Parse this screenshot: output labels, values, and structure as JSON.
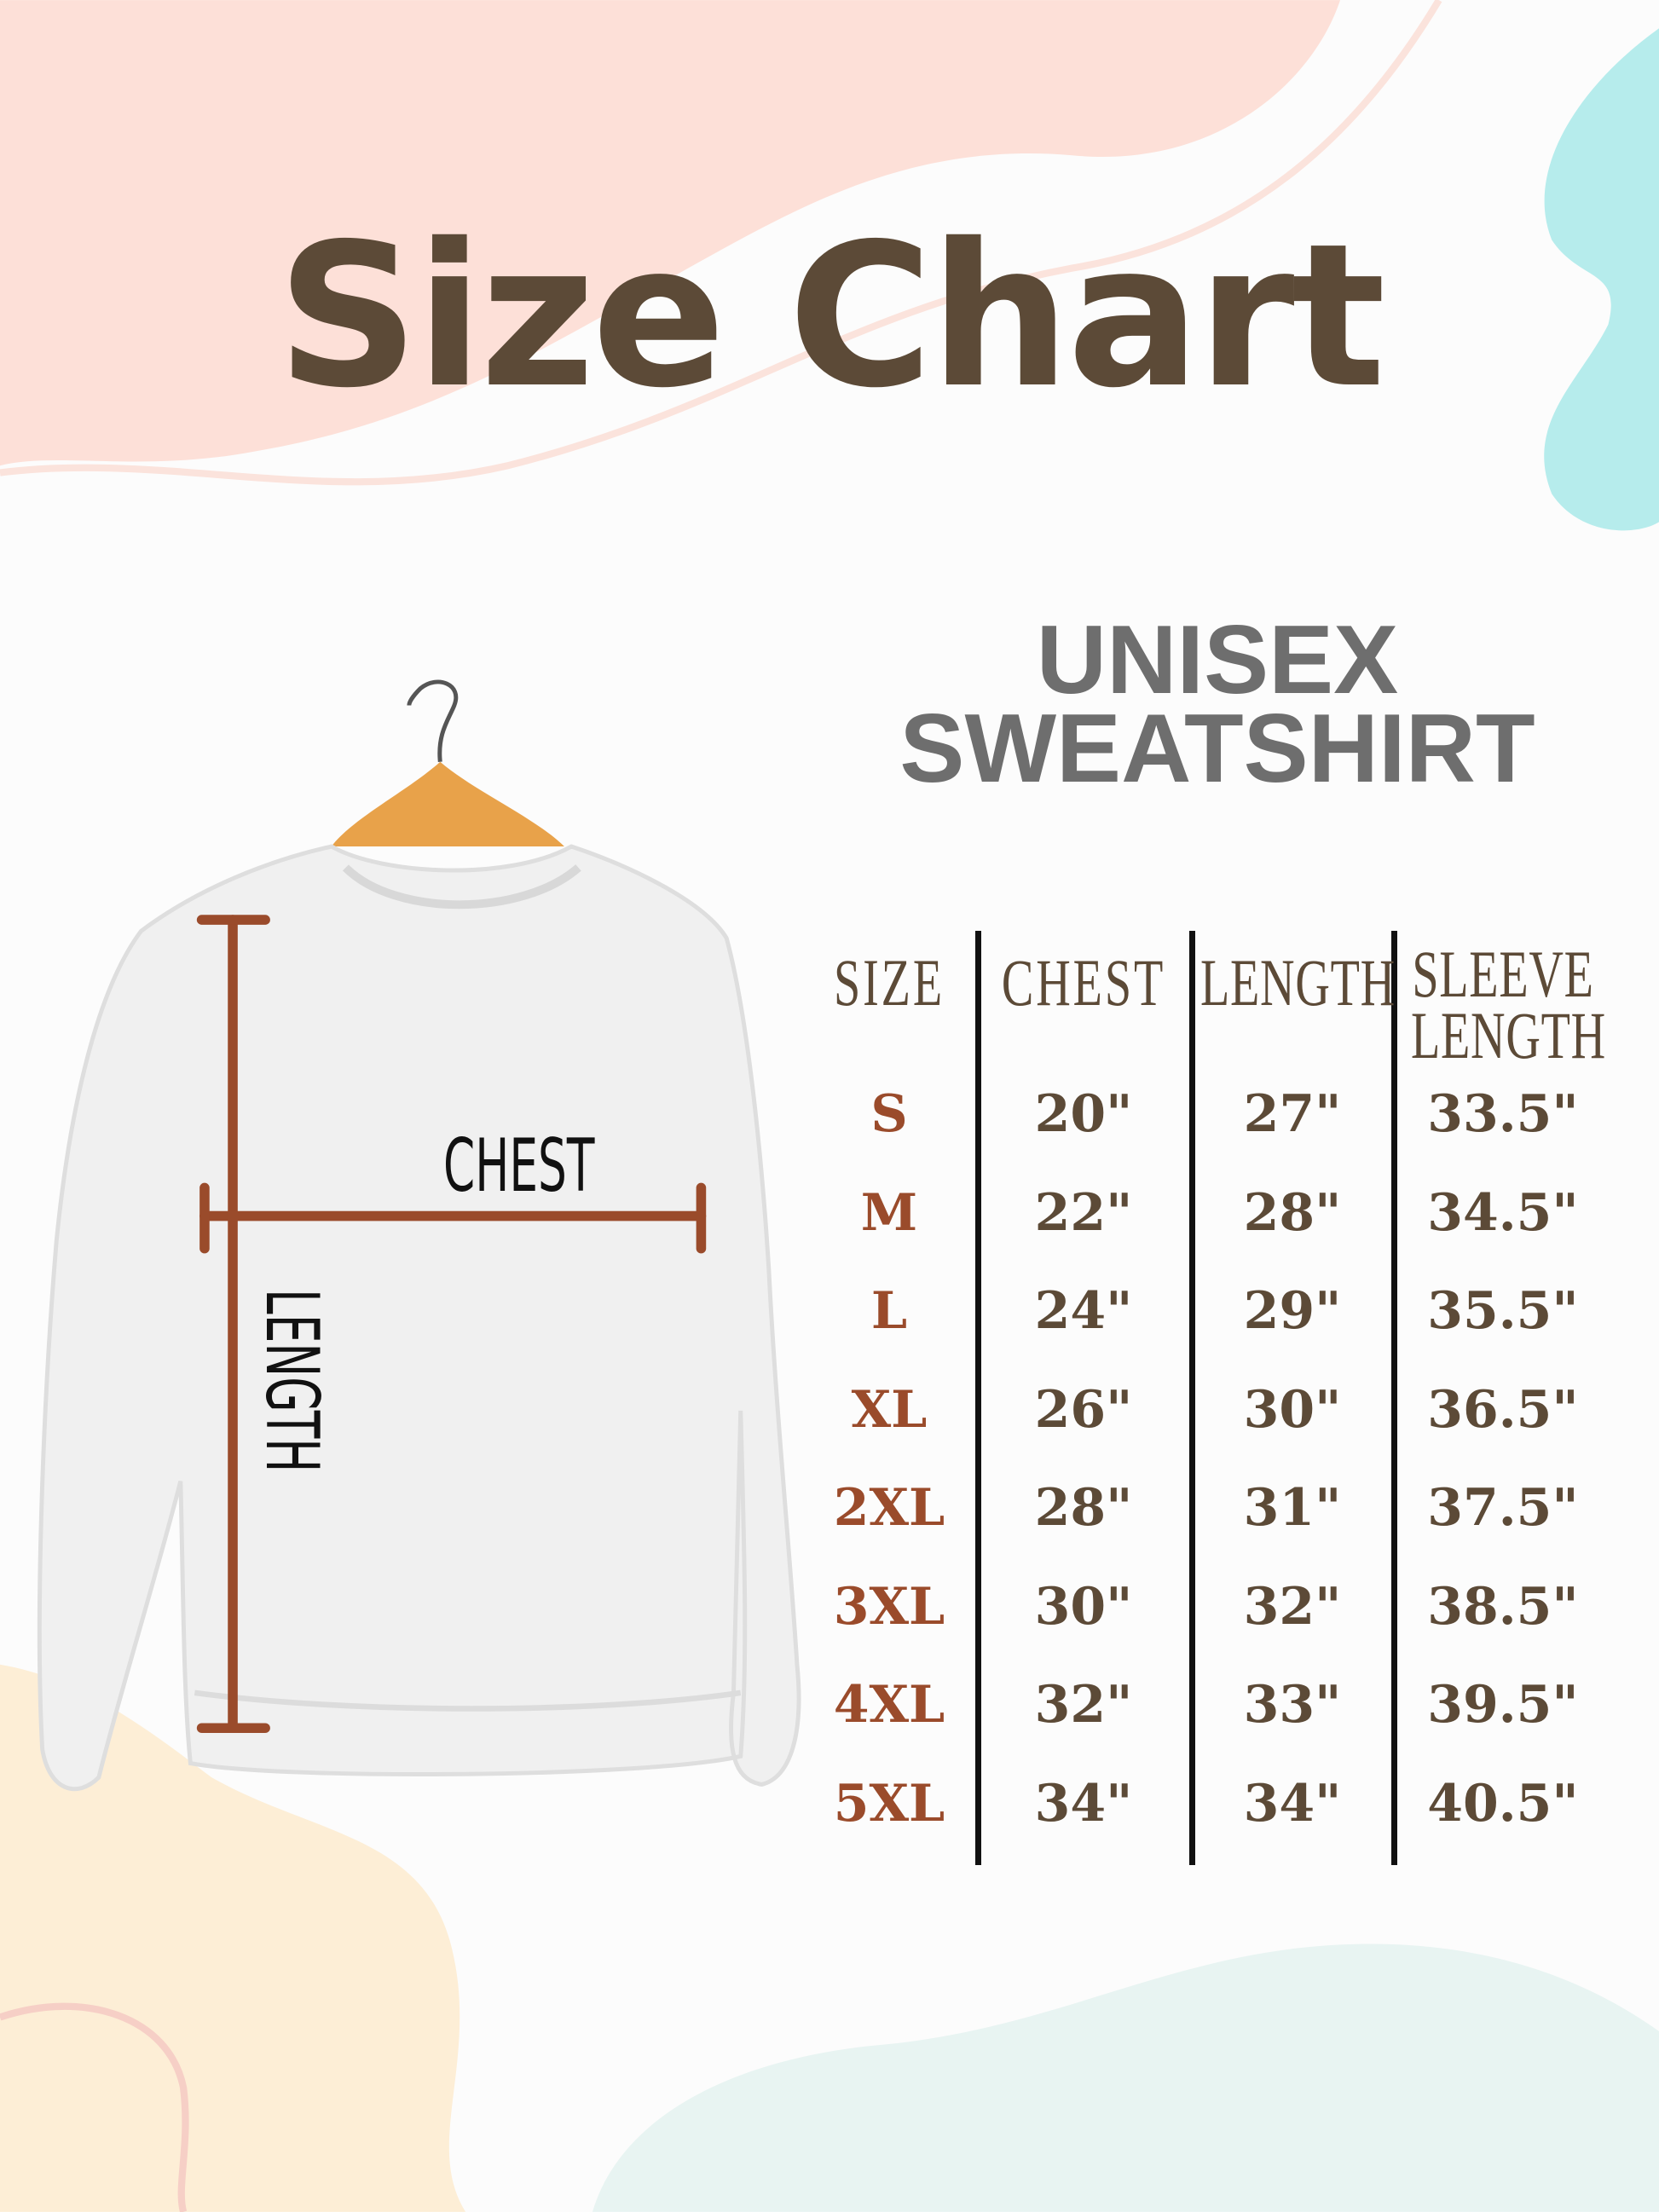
{
  "title": "Size Chart",
  "subtitle": {
    "line1": "UNISEX",
    "line2": "SWEATSHIRT"
  },
  "diagram": {
    "chest_label": "CHEST",
    "length_label": "LENGTH"
  },
  "colors": {
    "title": "#5c4a37",
    "size_labels": "#9a4b2b",
    "values": "#5c4a37",
    "measure_lines": "#9a4b2b",
    "subtitle": "#6e6e6e"
  },
  "table": {
    "headers": [
      "SIZE",
      "CHEST",
      "LENGTH",
      "SLEEVE",
      "LENGTH"
    ],
    "rows": [
      {
        "size": "S",
        "chest": "20\"",
        "length": "27\"",
        "sleeve": "33.5\""
      },
      {
        "size": "M",
        "chest": "22\"",
        "length": "28\"",
        "sleeve": "34.5\""
      },
      {
        "size": "L",
        "chest": "24\"",
        "length": "29\"",
        "sleeve": "35.5\""
      },
      {
        "size": "XL",
        "chest": "26\"",
        "length": "30\"",
        "sleeve": "36.5\""
      },
      {
        "size": "2XL",
        "chest": "28\"",
        "length": "31\"",
        "sleeve": "37.5\""
      },
      {
        "size": "3XL",
        "chest": "30\"",
        "length": "32\"",
        "sleeve": "38.5\""
      },
      {
        "size": "4XL",
        "chest": "32\"",
        "length": "33\"",
        "sleeve": "39.5\""
      },
      {
        "size": "5XL",
        "chest": "34\"",
        "length": "34\"",
        "sleeve": "40.5\""
      }
    ]
  }
}
